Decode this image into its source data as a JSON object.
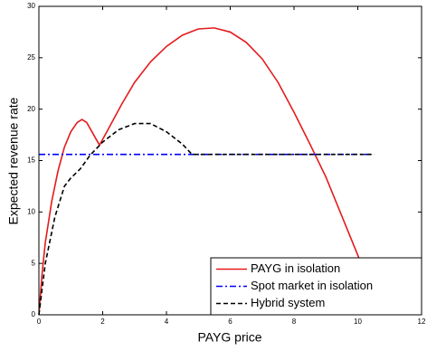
{
  "chart_data": {
    "type": "line",
    "xlabel": "PAYG price",
    "ylabel": "Expected revenue rate",
    "xlim": [
      0,
      12
    ],
    "xticks": [
      0,
      2,
      4,
      6,
      8,
      10,
      12
    ],
    "ylim": [
      0,
      30
    ],
    "yticks": [
      0,
      5,
      10,
      15,
      20,
      25,
      30
    ],
    "legend": "lower right",
    "series": [
      {
        "name": "PAYG in isolation",
        "color": "#e41a1c",
        "linestyle": "solid",
        "x": [
          0,
          0.1,
          0.2,
          0.4,
          0.6,
          0.8,
          1.0,
          1.2,
          1.35,
          1.5,
          1.7,
          1.9,
          2.2,
          2.6,
          3,
          3.5,
          4,
          4.5,
          5,
          5.5,
          6,
          6.5,
          7,
          7.5,
          8,
          8.5,
          9,
          9.5,
          10,
          10.3
        ],
        "values": [
          0,
          4,
          7,
          11,
          14,
          16.3,
          17.8,
          18.7,
          19,
          18.7,
          17.6,
          16.5,
          18.2,
          20.5,
          22.6,
          24.6,
          26.1,
          27.2,
          27.8,
          27.9,
          27.5,
          26.5,
          24.9,
          22.6,
          19.7,
          16.6,
          13.4,
          9.6,
          5.8,
          3.4
        ]
      },
      {
        "name": "Spot market in isolation",
        "color": "#0000ff",
        "linestyle": "dashdot",
        "x": [
          0,
          10.5
        ],
        "values": [
          15.6,
          15.6
        ]
      },
      {
        "name": "Hybrid system",
        "color": "#000000",
        "linestyle": "dashed",
        "x": [
          0,
          0.2,
          0.5,
          0.8,
          1.0,
          1.3,
          1.6,
          2,
          2.5,
          3,
          3.5,
          4,
          4.5,
          4.8,
          10.5
        ],
        "values": [
          0,
          5,
          9.5,
          12.5,
          13.3,
          14.2,
          15.5,
          16.8,
          18,
          18.6,
          18.6,
          17.8,
          16.6,
          15.6,
          15.6
        ]
      }
    ]
  }
}
